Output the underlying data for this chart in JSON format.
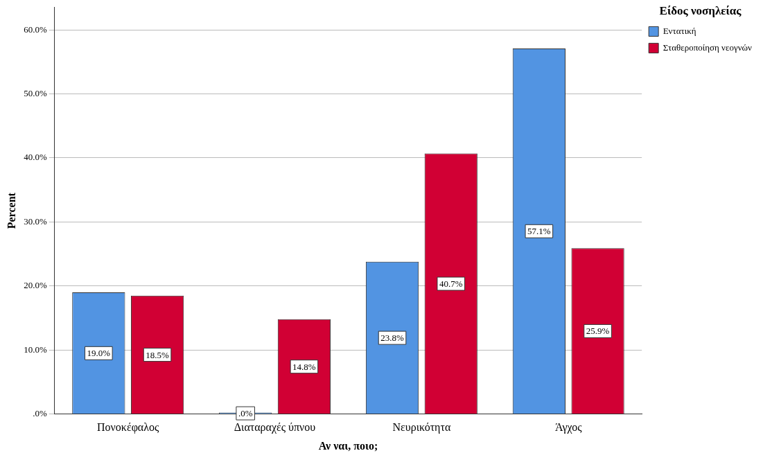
{
  "chart_data": {
    "type": "bar",
    "xlabel": "Αν ναι, ποιο;",
    "ylabel": "Percent",
    "legend_title": "Είδος νοσηλείας",
    "categories": [
      "Πονοκέφαλος",
      "Διαταραχές ύπνου",
      "Νευρικότητα",
      "Άγχος"
    ],
    "series": [
      {
        "name": "Εντατική",
        "color": "#5294e2",
        "values": [
          19.0,
          0.0,
          23.8,
          57.1
        ],
        "value_labels": [
          "19.0%",
          ".0%",
          "23.8%",
          "57.1%"
        ]
      },
      {
        "name": "Σταθεροποίηση νεογνών",
        "color": "#d10034",
        "values": [
          18.5,
          14.8,
          40.7,
          25.9
        ],
        "value_labels": [
          "18.5%",
          "14.8%",
          "40.7%",
          "25.9%"
        ]
      }
    ],
    "ylim": [
      0,
      63.5
    ],
    "yticks": [
      {
        "value": 0,
        "label": ".0%"
      },
      {
        "value": 10,
        "label": "10.0%"
      },
      {
        "value": 20,
        "label": "20.0%"
      },
      {
        "value": 30,
        "label": "30.0%"
      },
      {
        "value": 40,
        "label": "40.0%"
      },
      {
        "value": 50,
        "label": "50.0%"
      },
      {
        "value": 60,
        "label": "60.0%"
      }
    ],
    "grid": "y",
    "legend": "top right"
  }
}
